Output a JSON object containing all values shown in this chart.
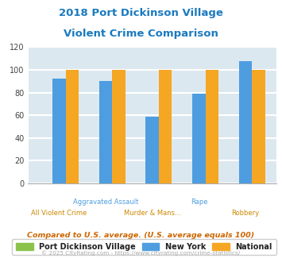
{
  "title_line1": "2018 Port Dickinson Village",
  "title_line2": "Violent Crime Comparison",
  "title_color": "#1a7abf",
  "categories": [
    "All Violent Crime",
    "Aggravated Assault",
    "Murder & Mans...",
    "Rape",
    "Robbery"
  ],
  "tick_labels_row1": [
    "",
    "Aggravated Assault",
    "",
    "Rape",
    ""
  ],
  "tick_labels_row2": [
    "All Violent Crime",
    "",
    "Murder & Mans...",
    "",
    "Robbery"
  ],
  "port_dickinson": [
    0,
    0,
    0,
    0,
    0
  ],
  "new_york": [
    92,
    90,
    59,
    79,
    108
  ],
  "national": [
    100,
    100,
    100,
    100,
    100
  ],
  "colors": {
    "port_dickinson": "#8bc34a",
    "new_york": "#4d9de0",
    "national": "#f5a623"
  },
  "ylim": [
    0,
    120
  ],
  "yticks": [
    0,
    20,
    40,
    60,
    80,
    100,
    120
  ],
  "background_color": "#dce8f0",
  "grid_color": "#ffffff",
  "legend_labels": [
    "Port Dickinson Village",
    "New York",
    "National"
  ],
  "footnote1": "Compared to U.S. average. (U.S. average equals 100)",
  "footnote2": "© 2025 CityRating.com - https://www.cityrating.com/crime-statistics/",
  "footnote1_color": "#cc6600",
  "footnote2_color": "#aaaaaa",
  "tick_label_color_upper": "#4d9de0",
  "tick_label_color_lower": "#cc8800"
}
